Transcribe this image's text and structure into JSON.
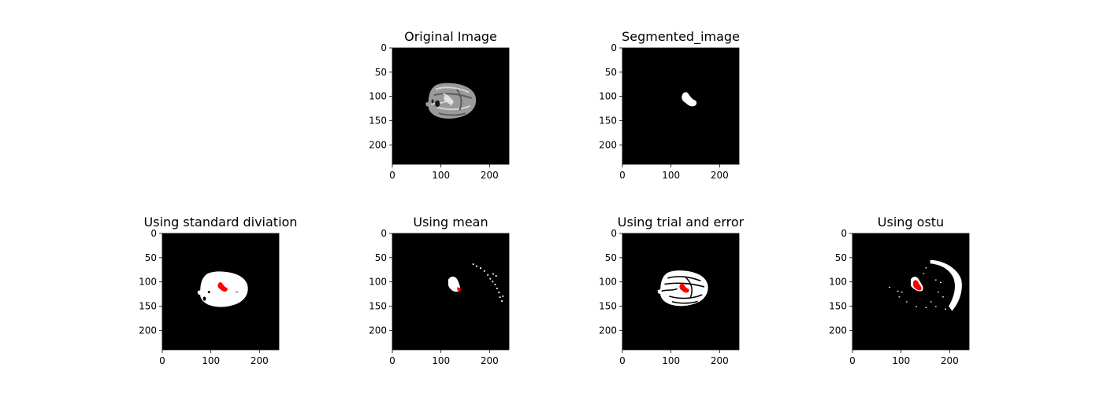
{
  "figure": {
    "subplots": [
      {
        "title": "Original Image",
        "kind": "original"
      },
      {
        "title": "Segmented_image",
        "kind": "segmented"
      },
      {
        "title": "Using standard diviation",
        "kind": "std"
      },
      {
        "title": "Using mean",
        "kind": "mean"
      },
      {
        "title": "Using trial and error",
        "kind": "trial"
      },
      {
        "title": "Using ostu",
        "kind": "otsu"
      }
    ]
  },
  "chart_data": [
    {
      "type": "image",
      "title": "Original Image",
      "x_ticks": [
        0,
        100,
        200
      ],
      "y_ticks": [
        0,
        50,
        100,
        150,
        200
      ],
      "xlim": [
        0,
        240
      ],
      "ylim": [
        240,
        0
      ],
      "colors": {
        "background": "#000000"
      }
    },
    {
      "type": "image",
      "title": "Segmented_image",
      "x_ticks": [
        0,
        100,
        200
      ],
      "y_ticks": [
        0,
        50,
        100,
        150,
        200
      ],
      "xlim": [
        0,
        240
      ],
      "ylim": [
        240,
        0
      ],
      "colors": {
        "background": "#000000",
        "mask": "#ffffff"
      }
    },
    {
      "type": "image",
      "title": "Using standard diviation",
      "x_ticks": [
        0,
        100,
        200
      ],
      "y_ticks": [
        0,
        50,
        100,
        150,
        200
      ],
      "xlim": [
        0,
        240
      ],
      "ylim": [
        240,
        0
      ],
      "colors": {
        "background": "#000000",
        "mask": "#ffffff",
        "overlay": "#ff0000"
      }
    },
    {
      "type": "image",
      "title": "Using mean",
      "x_ticks": [
        0,
        100,
        200
      ],
      "y_ticks": [
        0,
        50,
        100,
        150,
        200
      ],
      "xlim": [
        0,
        240
      ],
      "ylim": [
        240,
        0
      ],
      "colors": {
        "background": "#000000",
        "mask": "#ffffff",
        "overlay": "#ff0000"
      }
    },
    {
      "type": "image",
      "title": "Using trial and error",
      "x_ticks": [
        0,
        100,
        200
      ],
      "y_ticks": [
        0,
        50,
        100,
        150,
        200
      ],
      "xlim": [
        0,
        240
      ],
      "ylim": [
        240,
        0
      ],
      "colors": {
        "background": "#000000",
        "mask": "#ffffff",
        "overlay": "#ff0000"
      }
    },
    {
      "type": "image",
      "title": "Using ostu",
      "x_ticks": [
        0,
        100,
        200
      ],
      "y_ticks": [
        0,
        50,
        100,
        150,
        200
      ],
      "xlim": [
        0,
        240
      ],
      "ylim": [
        240,
        0
      ],
      "colors": {
        "background": "#000000",
        "mask": "#ffffff",
        "overlay": "#ff0000"
      }
    }
  ]
}
